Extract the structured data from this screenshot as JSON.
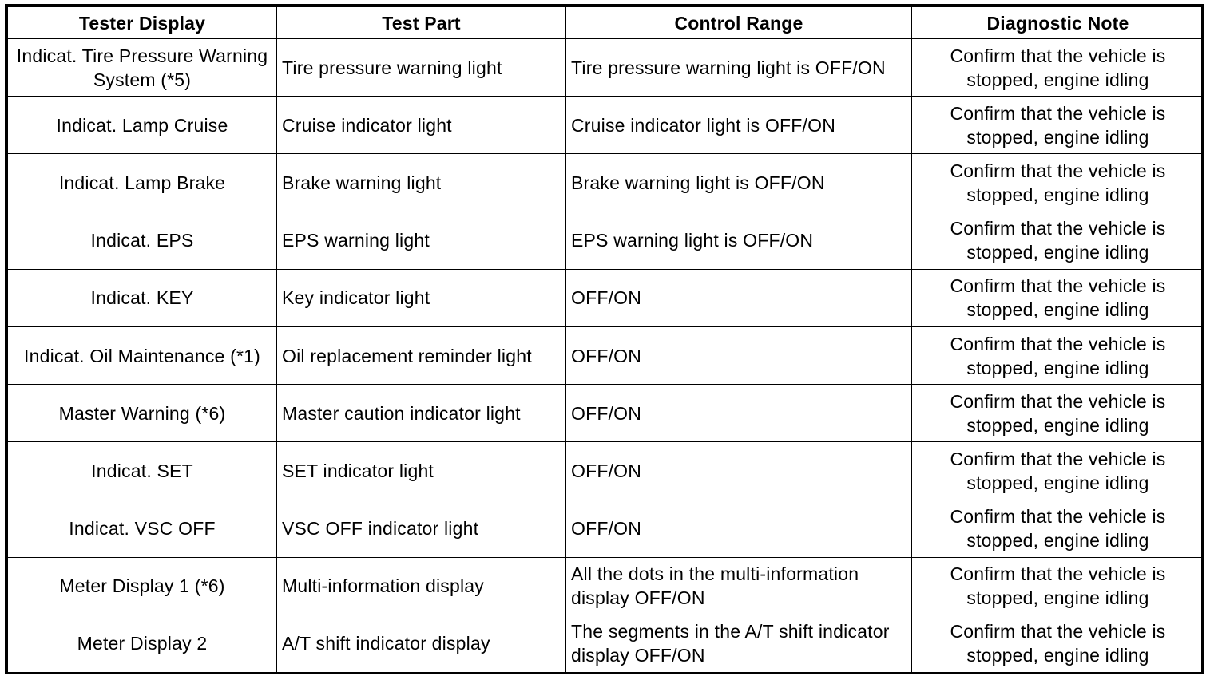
{
  "headers": {
    "tester_display": "Tester Display",
    "test_part": "Test Part",
    "control_range": "Control Range",
    "diagnostic_note": "Diagnostic Note"
  },
  "rows": [
    {
      "display": "Indicat. Tire Pressure Warning System (*5)",
      "part": "Tire pressure warning light",
      "range": "Tire pressure warning light is OFF/ON",
      "note": "Confirm that the vehicle is stopped, engine idling"
    },
    {
      "display": "Indicat. Lamp Cruise",
      "part": "Cruise indicator light",
      "range": "Cruise indicator light is OFF/ON",
      "note": "Confirm that the vehicle is stopped, engine idling"
    },
    {
      "display": "Indicat. Lamp Brake",
      "part": "Brake warning light",
      "range": "Brake warning light is OFF/ON",
      "note": "Confirm that the vehicle is stopped, engine idling"
    },
    {
      "display": "Indicat. EPS",
      "part": "EPS warning light",
      "range": "EPS warning light is OFF/ON",
      "note": "Confirm that the vehicle is stopped, engine idling"
    },
    {
      "display": "Indicat. KEY",
      "part": "Key indicator light",
      "range": "OFF/ON",
      "note": "Confirm that the vehicle is stopped, engine idling"
    },
    {
      "display": "Indicat. Oil Maintenance (*1)",
      "part": "Oil replacement reminder light",
      "range": "OFF/ON",
      "note": "Confirm that the vehicle is stopped, engine idling"
    },
    {
      "display": "Master Warning (*6)",
      "part": "Master caution indicator light",
      "range": "OFF/ON",
      "note": "Confirm that the vehicle is stopped, engine idling"
    },
    {
      "display": "Indicat. SET",
      "part": "SET indicator light",
      "range": "OFF/ON",
      "note": "Confirm that the vehicle is stopped, engine idling"
    },
    {
      "display": "Indicat. VSC OFF",
      "part": "VSC OFF indicator light",
      "range": "OFF/ON",
      "note": "Confirm that the vehicle is stopped, engine idling"
    },
    {
      "display": "Meter Display 1 (*6)",
      "part": "Multi-information display",
      "range": "All the dots in the multi-information display OFF/ON",
      "note": "Confirm that the vehicle is stopped, engine idling"
    },
    {
      "display": "Meter Display 2",
      "part": "A/T shift indicator display",
      "range": "The segments in the A/T shift indicator display OFF/ON",
      "note": "Confirm that the vehicle is stopped, engine idling"
    }
  ]
}
